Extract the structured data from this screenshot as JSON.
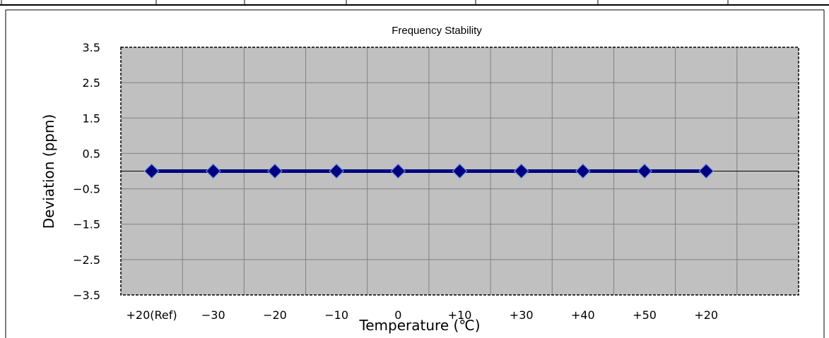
{
  "chart_data": {
    "type": "line",
    "title": "Frequency Stability",
    "xlabel": "Temperature (℃)",
    "ylabel": "Deviation (ppm)",
    "categories": [
      "+20(Ref)",
      "−30",
      "−20",
      "−10",
      "0",
      "+10",
      "+30",
      "+40",
      "+50",
      "+20"
    ],
    "series": [
      {
        "values": [
          0,
          0,
          0,
          0,
          0,
          0,
          0,
          0,
          0,
          0
        ]
      }
    ],
    "yticks": [
      "3.5",
      "2.5",
      "1.5",
      "0.5",
      "−0.5",
      "−1.5",
      "−2.5",
      "−3.5"
    ],
    "ylim": [
      -3.5,
      3.5
    ],
    "grid": true,
    "legend": "none",
    "colors": {
      "plot_background": "#c0c0c0",
      "grid": "#808080",
      "series_line": "#000080",
      "marker_fill": "#000080",
      "marker_edge": "#6a8fd8"
    }
  }
}
